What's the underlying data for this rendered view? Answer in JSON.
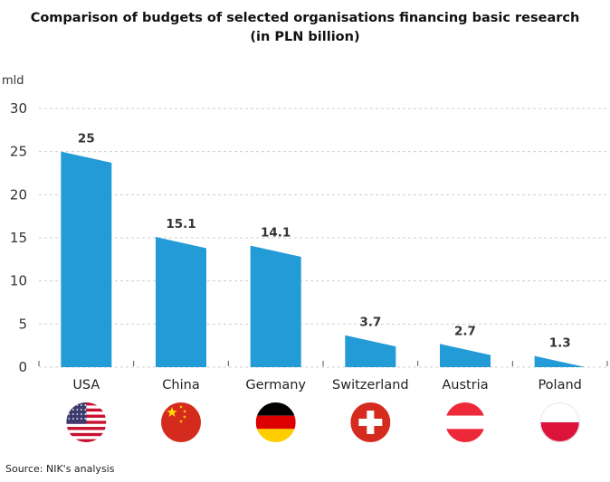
{
  "chart_data": {
    "type": "bar",
    "title": "Comparison of budgets of selected organisations financing basic research",
    "subtitle": "(in PLN billion)",
    "ylabel": "mld",
    "xlabel": "",
    "categories": [
      "USA",
      "China",
      "Germany",
      "Switzerland",
      "Austria",
      "Poland"
    ],
    "values": [
      25,
      15.1,
      14.1,
      3.7,
      2.7,
      1.3
    ],
    "data_labels": [
      "25",
      "15.1",
      "14.1",
      "3.7",
      "2.7",
      "1.3"
    ],
    "ylim": [
      0,
      30
    ],
    "yticks": [
      0,
      5,
      10,
      15,
      20,
      25,
      30
    ],
    "grid": true,
    "bar_color": "#229bd6",
    "flags": [
      "usa-flag",
      "china-flag",
      "germany-flag",
      "switzerland-flag",
      "austria-flag",
      "poland-flag"
    ],
    "source": "Source: NIK's analysis"
  }
}
